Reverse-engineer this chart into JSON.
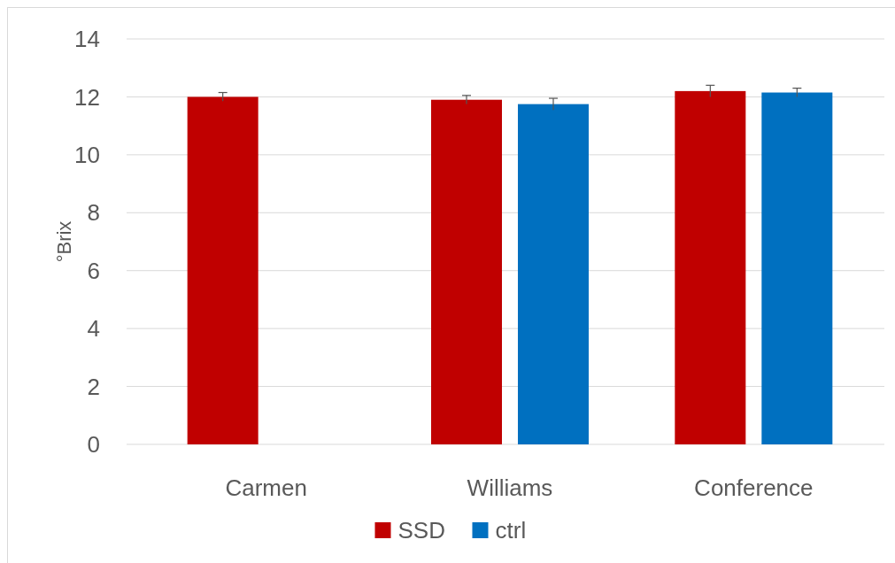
{
  "chart_data": {
    "type": "bar",
    "ylabel": "°Brix",
    "categories": [
      "Carmen",
      "Williams",
      "Conference"
    ],
    "series": [
      {
        "name": "SSD",
        "color": "#c00000",
        "values": [
          12.0,
          11.9,
          12.2
        ],
        "errors": [
          0.15,
          0.15,
          0.2
        ]
      },
      {
        "name": "ctrl",
        "color": "#0070c0",
        "values": [
          null,
          11.75,
          12.15
        ],
        "errors": [
          null,
          0.2,
          0.15
        ]
      }
    ],
    "ylim": [
      0,
      14
    ],
    "yticks": [
      0,
      2,
      4,
      6,
      8,
      10,
      12,
      14
    ],
    "grid": "y",
    "legend": "bottom"
  }
}
